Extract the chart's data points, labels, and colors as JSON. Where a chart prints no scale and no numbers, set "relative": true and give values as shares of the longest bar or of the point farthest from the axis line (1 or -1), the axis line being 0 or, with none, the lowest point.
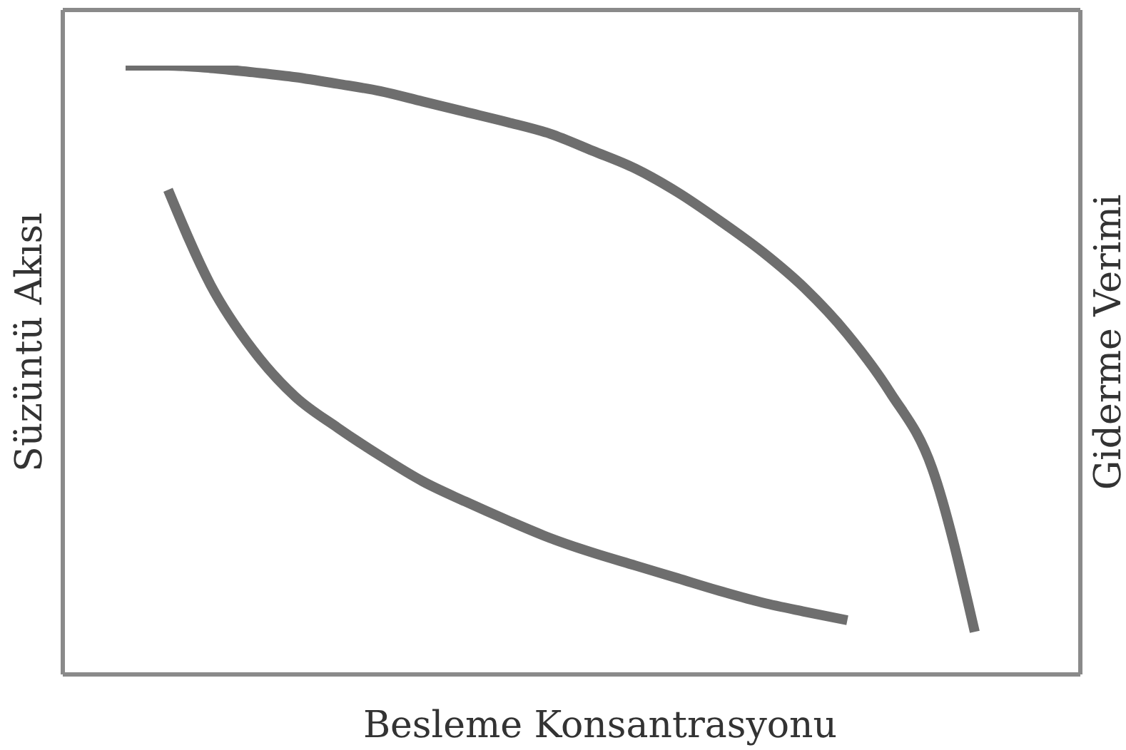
{
  "chart_data": {
    "type": "line",
    "relative": true,
    "xlabel": "Besleme Konsantrasyonu",
    "ylabel": "Süzüntü Akısı",
    "y2label": "Giderme Verimi",
    "categories": [
      null,
      null,
      null,
      null,
      null,
      null,
      null,
      null,
      null,
      null,
      null,
      null,
      null,
      null,
      null,
      null,
      null,
      null,
      null,
      null,
      null
    ],
    "series": [
      {
        "color": "#6e6e6e",
        "values": [
          1.0,
          1.0,
          0.996,
          0.989,
          0.981,
          0.97,
          0.958,
          0.941,
          0.924,
          0.907,
          0.888,
          0.86,
          0.831,
          0.792,
          0.745,
          0.694,
          0.634,
          0.559,
          0.464,
          0.338,
          0.07
        ]
      },
      {
        "color": "#6e6e6e",
        "values": [
          null,
          0.796,
          0.64,
          0.533,
          0.456,
          0.405,
          0.359,
          0.317,
          0.284,
          0.253,
          0.224,
          0.2,
          0.179,
          0.158,
          0.137,
          0.118,
          0.103,
          0.089,
          null,
          null,
          null
        ]
      }
    ],
    "marker": "none",
    "line_style": "solid"
  }
}
